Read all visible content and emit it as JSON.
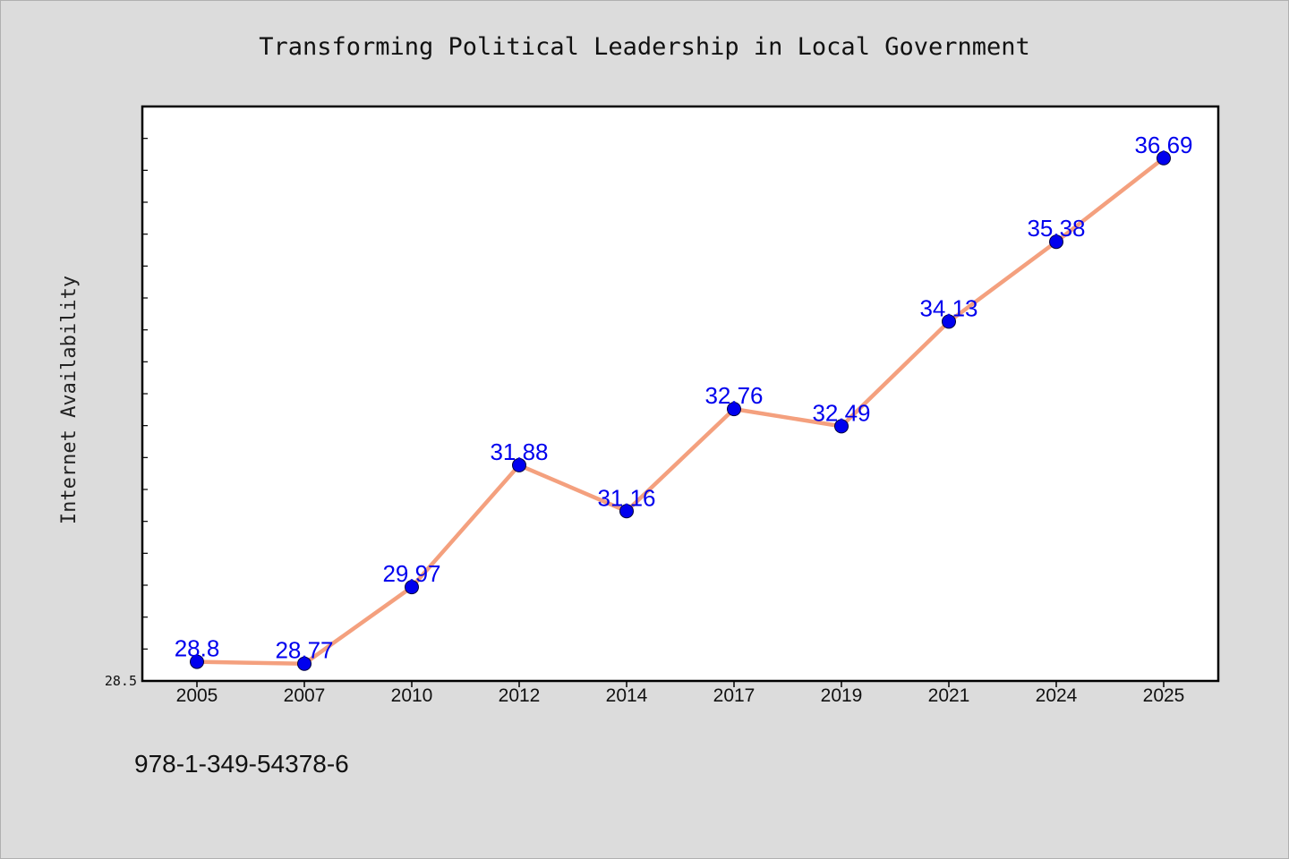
{
  "chart_data": {
    "type": "line",
    "title": "Transforming Political Leadership in Local Government",
    "xlabel": "",
    "ylabel": "Internet Availability",
    "categories": [
      "2005",
      "2007",
      "2010",
      "2012",
      "2014",
      "2017",
      "2019",
      "2021",
      "2024",
      "2025"
    ],
    "values": [
      28.8,
      28.77,
      29.97,
      31.88,
      31.16,
      32.76,
      32.49,
      34.13,
      35.38,
      36.69
    ],
    "data_labels": [
      "28.8",
      "28.77",
      "29.97",
      "31.88",
      "31.16",
      "32.76",
      "32.49",
      "34.13",
      "35.38",
      "36.69"
    ],
    "ylim": [
      28.5,
      37.5
    ],
    "ytick_labels": [
      "28.5"
    ],
    "grid": false,
    "legend": "none",
    "line_color": "#f4a07e",
    "marker_color": "#0000ee",
    "label_color": "#0000ee"
  },
  "footer": {
    "isbn": "978-1-349-54378-6"
  }
}
